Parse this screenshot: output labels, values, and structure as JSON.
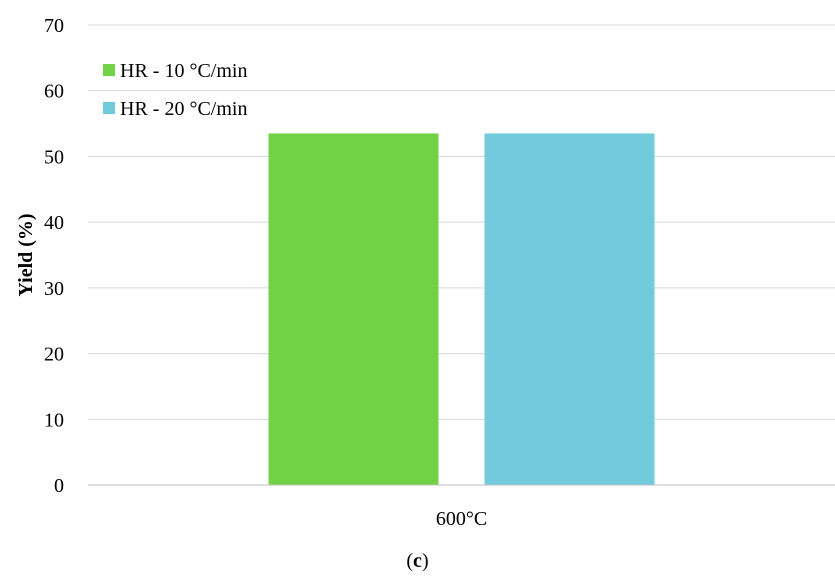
{
  "chart_data": {
    "type": "bar",
    "categories": [
      "600°C"
    ],
    "series": [
      {
        "name": "HR - 10 °C/min",
        "values": [
          53.5
        ],
        "color": "#70d244"
      },
      {
        "name": "HR - 20 °C/min",
        "values": [
          53.5
        ],
        "color": "#71cbdc"
      }
    ],
    "title": "",
    "xlabel": "",
    "ylabel": "Yield (%)",
    "ylim": [
      0,
      70
    ],
    "yticks": [
      0,
      10,
      20,
      30,
      40,
      50,
      60,
      70
    ],
    "grid": true,
    "legend_position": "top-left",
    "colors": {
      "grid": "#d9d9d9",
      "axis": "#bfbfbf"
    }
  },
  "panel": {
    "open": "(",
    "letter": "c",
    "close": ")"
  }
}
